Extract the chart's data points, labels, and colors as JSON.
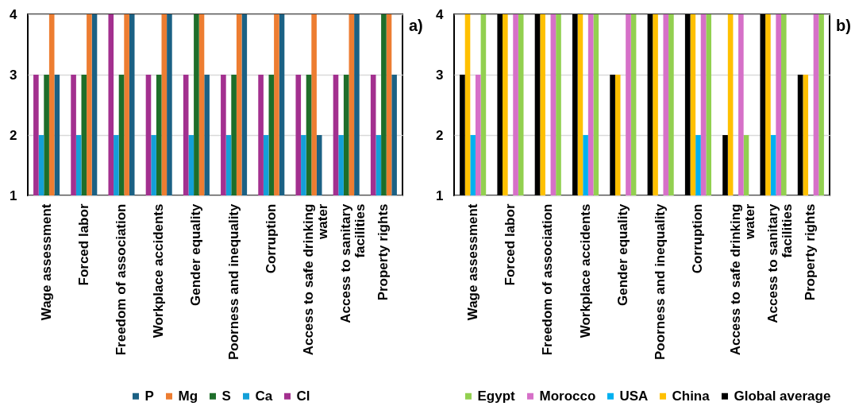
{
  "chart_data": [
    {
      "type": "bar",
      "title": "a)",
      "categories": [
        "Wage assessment",
        "Forced labor",
        "Freedom of association",
        "Workplace accidents",
        "Gender equality",
        "Poorness and inequality",
        "Corruption",
        "Access to safe drinking water",
        "Access to sanitary facilities",
        "Property rights"
      ],
      "series": [
        {
          "name": "P",
          "color": "#1b6184",
          "values": [
            3,
            4,
            4,
            4,
            3,
            4,
            4,
            2,
            4,
            3
          ]
        },
        {
          "name": "Mg",
          "color": "#ed7d31",
          "values": [
            4,
            4,
            4,
            4,
            4,
            4,
            4,
            4,
            4,
            4
          ]
        },
        {
          "name": "S",
          "color": "#1e6e2a",
          "values": [
            3,
            3,
            3,
            3,
            4,
            3,
            3,
            3,
            3,
            4
          ]
        },
        {
          "name": "Ca",
          "color": "#14a0d8",
          "values": [
            2,
            2,
            2,
            2,
            2,
            2,
            2,
            2,
            2,
            2
          ]
        },
        {
          "name": "Cl",
          "color": "#a3308f",
          "values": [
            3,
            3,
            4,
            3,
            3,
            3,
            3,
            3,
            3,
            3
          ]
        }
      ],
      "ylim": [
        1,
        4
      ],
      "yticks": [
        1,
        2,
        3,
        4
      ],
      "grid": "y",
      "legend": "bottom"
    },
    {
      "type": "bar",
      "title": "b)",
      "categories": [
        "Wage assessment",
        "Forced labor",
        "Freedom of association",
        "Workplace accidents",
        "Gender equality",
        "Poorness and inequality",
        "Corruption",
        "Access to safe drinking water",
        "Access to sanitary facilities",
        "Property rights"
      ],
      "series": [
        {
          "name": "Egypt",
          "color": "#92d050",
          "values": [
            4,
            4,
            4,
            4,
            4,
            4,
            4,
            2,
            4,
            4
          ]
        },
        {
          "name": "Morocco",
          "color": "#d670c8",
          "values": [
            3,
            4,
            4,
            4,
            4,
            4,
            4,
            4,
            4,
            4
          ]
        },
        {
          "name": "USA",
          "color": "#00b0f0",
          "values": [
            2,
            null,
            null,
            2,
            null,
            null,
            2,
            null,
            2,
            null
          ]
        },
        {
          "name": "China",
          "color": "#ffc000",
          "values": [
            4,
            4,
            4,
            4,
            3,
            4,
            4,
            4,
            4,
            3
          ]
        },
        {
          "name": "Global average",
          "color": "#000000",
          "values": [
            3,
            4,
            4,
            4,
            3,
            4,
            4,
            2,
            4,
            3
          ]
        }
      ],
      "ylim": [
        1,
        4
      ],
      "yticks": [
        1,
        2,
        3,
        4
      ],
      "grid": "y",
      "legend": "bottom"
    }
  ]
}
